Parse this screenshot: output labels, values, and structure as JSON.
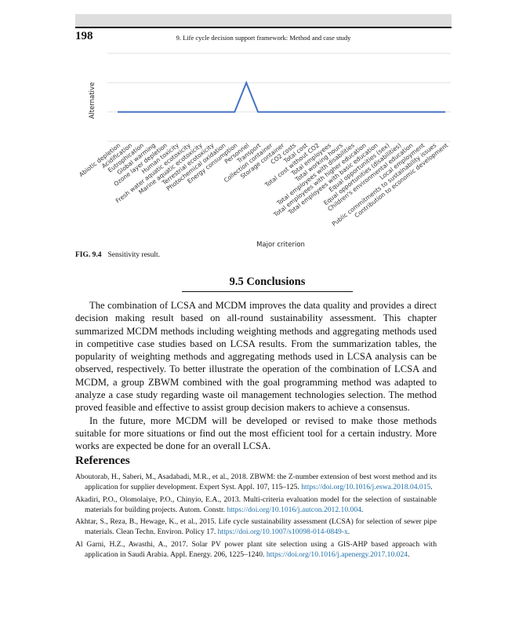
{
  "header": {
    "page_number": "198",
    "running_title": "9. Life cycle decision support framework: Method and case study"
  },
  "figure": {
    "label": "FIG. 9.4",
    "caption": "Sensitivity result."
  },
  "chart_data": {
    "type": "line",
    "xlabel": "Major criterion",
    "ylabel": "Alternative",
    "ylim": [
      0,
      3
    ],
    "grid": true,
    "categories": [
      "Abiotic depletion",
      "Acidification",
      "Eutrophication",
      "Global warming",
      "Ozone layer depletion",
      "Human toxicity",
      "Fresh water aquatic ecotoxicity",
      "Marine aquatic ecotoxicity",
      "Terrestrial ecotoxicity",
      "Photochemical oxidation",
      "Energy consumption",
      "Personnel",
      "Transport",
      "Collection container",
      "Storage container",
      "CO2 costs",
      "Total cost",
      "Total cost without CO2",
      "Total employees",
      "Total working hours",
      "Total employees with disabilities",
      "Total employees with higher education",
      "Total employees with basic education",
      "Equal opportunities (sex)",
      "Equal opportunities (disabilities)",
      "Children's environmental education",
      "Local employment",
      "Public commitments to sustainability issues",
      "Contribution to economic development"
    ],
    "series": [
      {
        "values": [
          1,
          1,
          1,
          1,
          1,
          1,
          1,
          1,
          1,
          1,
          1,
          2,
          1,
          1,
          1,
          1,
          1,
          1,
          1,
          1,
          1,
          1,
          1,
          1,
          1,
          1,
          1,
          1,
          1
        ],
        "color": "#4472c4"
      }
    ]
  },
  "section": {
    "heading": "9.5 Conclusions",
    "paragraphs": [
      "The combination of LCSA and MCDM improves the data quality and provides a direct decision making result based on all-round sustainability assessment. This chapter summarized MCDM methods including weighting methods and aggregating methods used in competitive case studies based on LCSA results. From the summarization tables, the popularity of weighting methods and aggregating methods used in LCSA analysis can be observed, respectively. To better illustrate the operation of the combination of LCSA and MCDM, a group ZBWM combined with the goal programming method was adapted to analyze a case study regarding waste oil management technologies selection. The method proved feasible and effective to assist group decision makers to achieve a consensus.",
      "In the future, more MCDM will be developed or revised to make those methods suitable for more situations or find out the most efficient tool for a certain industry. More works are expected be done for an overall LCSA."
    ]
  },
  "references": {
    "heading": "References",
    "items": [
      {
        "text": "Aboutorab, H., Saberi, M., Asadabadi, M.R., et al., 2018. ZBWM: the Z-number extension of best worst method and its application for supplier development. Expert Syst. Appl. 107, 115–125. ",
        "link": "https://doi.org/10.1016/j.eswa.2018.04.015",
        "after": "."
      },
      {
        "text": "Akadiri, P.O., Olomolaiye, P.O., Chinyio, E.A., 2013. Multi-criteria evaluation model for the selection of sustainable materials for building projects. Autom. Constr. ",
        "link": "https://doi.org/10.1016/j.autcon.2012.10.004",
        "after": "."
      },
      {
        "text": "Akhtar, S., Reza, B., Hewage, K., et al., 2015. Life cycle sustainability assessment (LCSA) for selection of sewer pipe materials. Clean Techn. Environ. Policy 17. ",
        "link": "https://doi.org/10.1007/s10098-014-0849-x",
        "after": "."
      },
      {
        "text": "Al Garni, H.Z., Awasthi, A., 2017. Solar PV power plant site selection using a GIS-AHP based approach with application in Saudi Arabia. Appl. Energy. 206, 1225–1240. ",
        "link": "https://doi.org/10.1016/j.apenergy.2017.10.024",
        "after": "."
      }
    ]
  }
}
